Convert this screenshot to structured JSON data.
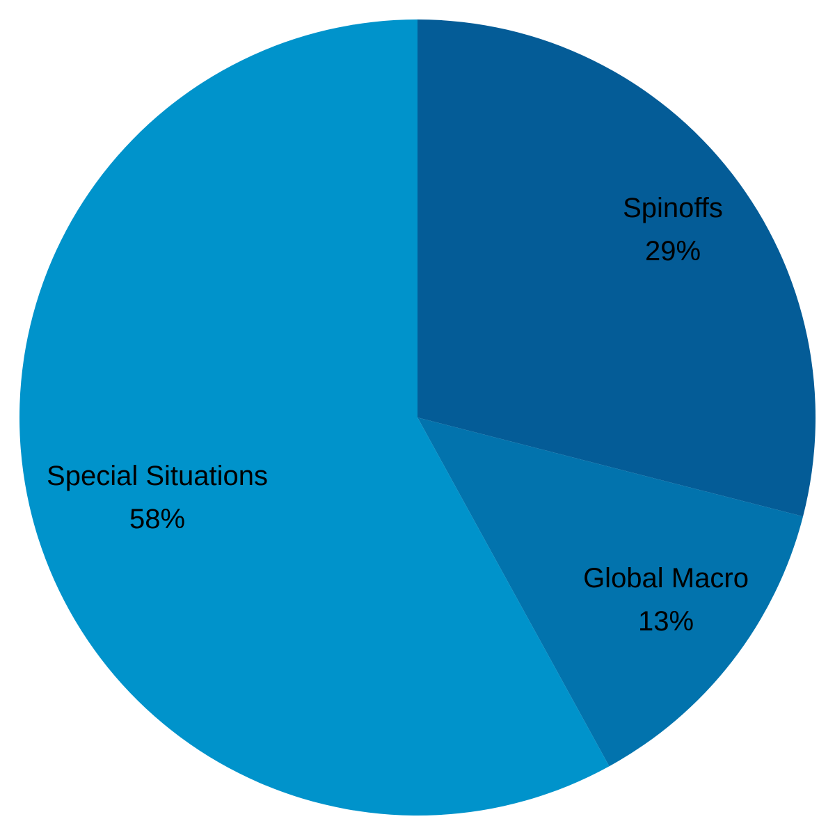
{
  "chart_data": {
    "type": "pie",
    "start_angle_deg": 0,
    "direction": "clockwise",
    "slices": [
      {
        "name": "Spinoffs",
        "value": 29,
        "label": "29%",
        "color": "#045c97"
      },
      {
        "name": "Global Macro",
        "value": 13,
        "label": "13%",
        "color": "#0273ad"
      },
      {
        "name": "Special Situations",
        "value": 58,
        "label": "58%",
        "color": "#0093cb"
      }
    ],
    "legend": "none"
  }
}
